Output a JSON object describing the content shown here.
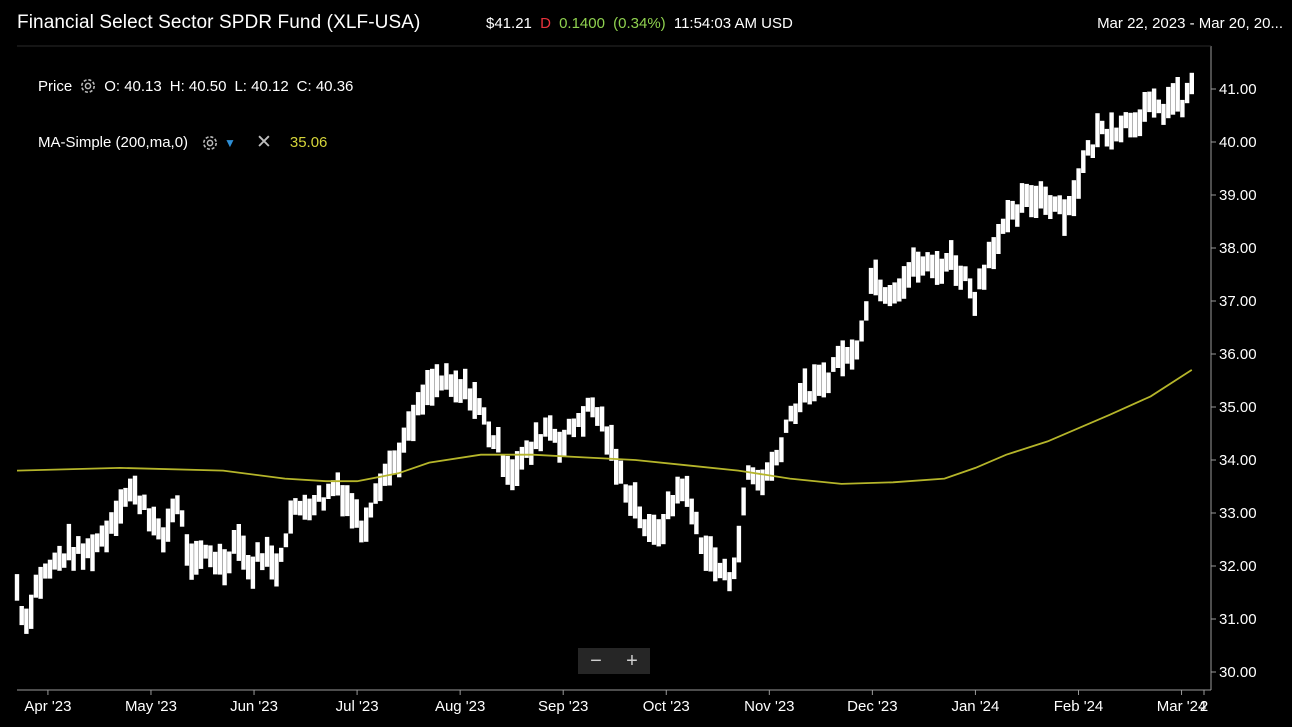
{
  "header": {
    "title": "Financial Select Sector SPDR Fund (XLF-USA)",
    "last_price": "$41.21",
    "flag": "D",
    "change": "0.1400",
    "change_pct": "(0.34%)",
    "time": "11:54:03 AM USD",
    "date_range": "Mar 22, 2023 - Mar 20, 20..."
  },
  "legend": {
    "price_label": "Price",
    "ohlc": [
      "O: 40.13",
      "H: 40.50",
      "L: 40.12",
      "C: 40.36"
    ],
    "ma_label": "MA-Simple (200,ma,0)",
    "ma_value": "35.06"
  },
  "zoom": {
    "minus": "−",
    "plus": "+"
  },
  "icons": {
    "gear": "gear-icon",
    "chevron": "chevron-down-icon",
    "close": "close-icon"
  },
  "colors": {
    "background": "#000000",
    "bars": "#ffffff",
    "ma_line": "#b5b52a",
    "ma_text": "#d4d43a",
    "change": "#8fd14f",
    "flag": "#e8323c"
  },
  "chart_data": {
    "type": "line",
    "title": "",
    "xlabel": "",
    "ylabel": "",
    "ylim": [
      29.8,
      41.5
    ],
    "grid": false,
    "y_ticks": [
      "30.00",
      "31.00",
      "32.00",
      "33.00",
      "34.00",
      "35.00",
      "36.00",
      "37.00",
      "38.00",
      "39.00",
      "40.00",
      "41.00"
    ],
    "x_ticks": [
      "Apr '23",
      "May '23",
      "Jun '23",
      "Jul '23",
      "Aug '23",
      "Sep '23",
      "Oct '23",
      "Nov '23",
      "Dec '23",
      "Jan '24",
      "Feb '24",
      "Mar '24",
      "2"
    ],
    "x_tick_months": [
      0.3,
      1.3,
      2.3,
      3.3,
      4.3,
      5.3,
      6.3,
      7.3,
      8.3,
      9.3,
      10.3,
      11.3,
      12.0
    ],
    "price_series": {
      "name": "Price",
      "style": "ohlc-bars",
      "anchors": [
        [
          0.0,
          31.6
        ],
        [
          0.08,
          30.9
        ],
        [
          0.2,
          31.7
        ],
        [
          0.35,
          32.0
        ],
        [
          0.5,
          32.3
        ],
        [
          0.65,
          32.2
        ],
        [
          0.85,
          32.6
        ],
        [
          1.0,
          33.2
        ],
        [
          1.1,
          33.4
        ],
        [
          1.25,
          33.2
        ],
        [
          1.4,
          32.4
        ],
        [
          1.55,
          33.3
        ],
        [
          1.7,
          31.9
        ],
        [
          1.85,
          32.3
        ],
        [
          2.0,
          32.0
        ],
        [
          2.15,
          32.6
        ],
        [
          2.25,
          31.9
        ],
        [
          2.4,
          32.3
        ],
        [
          2.5,
          31.9
        ],
        [
          2.65,
          32.9
        ],
        [
          2.8,
          33.2
        ],
        [
          3.0,
          33.3
        ],
        [
          3.1,
          33.6
        ],
        [
          3.25,
          33.1
        ],
        [
          3.35,
          32.7
        ],
        [
          3.5,
          33.6
        ],
        [
          3.65,
          33.9
        ],
        [
          3.8,
          34.5
        ],
        [
          3.95,
          35.2
        ],
        [
          4.1,
          35.5
        ],
        [
          4.25,
          35.3
        ],
        [
          4.4,
          35.3
        ],
        [
          4.55,
          34.7
        ],
        [
          4.7,
          34.1
        ],
        [
          4.8,
          33.8
        ],
        [
          5.0,
          34.2
        ],
        [
          5.15,
          34.7
        ],
        [
          5.3,
          34.3
        ],
        [
          5.45,
          34.8
        ],
        [
          5.6,
          35.0
        ],
        [
          5.7,
          34.6
        ],
        [
          5.85,
          33.7
        ],
        [
          6.0,
          33.2
        ],
        [
          6.15,
          32.5
        ],
        [
          6.3,
          32.9
        ],
        [
          6.45,
          33.6
        ],
        [
          6.55,
          33.0
        ],
        [
          6.7,
          32.2
        ],
        [
          6.8,
          32.0
        ],
        [
          6.9,
          31.7
        ],
        [
          7.0,
          32.4
        ],
        [
          7.1,
          33.8
        ],
        [
          7.2,
          33.6
        ],
        [
          7.35,
          33.9
        ],
        [
          7.45,
          34.6
        ],
        [
          7.6,
          35.2
        ],
        [
          7.8,
          35.4
        ],
        [
          8.0,
          36.0
        ],
        [
          8.1,
          35.9
        ],
        [
          8.2,
          36.6
        ],
        [
          8.3,
          37.5
        ],
        [
          8.45,
          37.2
        ],
        [
          8.6,
          37.4
        ],
        [
          8.75,
          37.7
        ],
        [
          8.9,
          37.6
        ],
        [
          9.05,
          37.8
        ],
        [
          9.15,
          37.6
        ],
        [
          9.3,
          37.1
        ],
        [
          9.45,
          38.0
        ],
        [
          9.6,
          38.4
        ],
        [
          9.75,
          38.8
        ],
        [
          9.9,
          39.0
        ],
        [
          10.05,
          38.9
        ],
        [
          10.2,
          38.7
        ],
        [
          10.35,
          39.6
        ],
        [
          10.5,
          40.2
        ],
        [
          10.65,
          40.3
        ],
        [
          10.8,
          40.4
        ],
        [
          10.95,
          40.6
        ],
        [
          11.1,
          40.6
        ],
        [
          11.2,
          40.8
        ],
        [
          11.3,
          40.7
        ],
        [
          11.4,
          41.0
        ]
      ]
    },
    "ma_series": {
      "name": "MA-Simple (200,ma,0)",
      "x": [
        0.0,
        1.0,
        2.0,
        2.6,
        3.0,
        3.3,
        3.7,
        4.0,
        4.5,
        5.0,
        5.5,
        6.0,
        6.5,
        7.0,
        7.5,
        8.0,
        8.5,
        9.0,
        9.3,
        9.6,
        10.0,
        10.3,
        10.6,
        11.0,
        11.4
      ],
      "y": [
        33.8,
        33.85,
        33.8,
        33.65,
        33.6,
        33.6,
        33.75,
        33.95,
        34.1,
        34.1,
        34.05,
        34.0,
        33.9,
        33.8,
        33.65,
        33.55,
        33.58,
        33.65,
        33.85,
        34.1,
        34.35,
        34.6,
        34.85,
        35.2,
        35.7
      ]
    }
  }
}
